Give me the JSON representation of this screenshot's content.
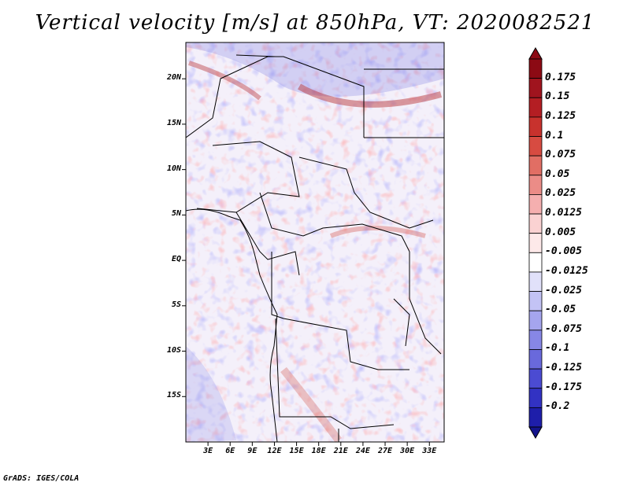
{
  "title": "Vertical velocity [m/s] at 850hPa, VT: 2020082521",
  "credit": "GrADS: IGES/COLA",
  "map": {
    "lon_range": [
      0,
      35
    ],
    "lat_range": [
      -20,
      24
    ],
    "lat_ticks": [
      {
        "value": 20,
        "label": "20N"
      },
      {
        "value": 15,
        "label": "15N"
      },
      {
        "value": 10,
        "label": "10N"
      },
      {
        "value": 5,
        "label": "5N"
      },
      {
        "value": 0,
        "label": "EQ"
      },
      {
        "value": -5,
        "label": "5S"
      },
      {
        "value": -10,
        "label": "10S"
      },
      {
        "value": -15,
        "label": "15S"
      }
    ],
    "lon_ticks": [
      {
        "value": 3,
        "label": "3E"
      },
      {
        "value": 6,
        "label": "6E"
      },
      {
        "value": 9,
        "label": "9E"
      },
      {
        "value": 12,
        "label": "12E"
      },
      {
        "value": 15,
        "label": "15E"
      },
      {
        "value": 18,
        "label": "18E"
      },
      {
        "value": 21,
        "label": "21E"
      },
      {
        "value": 24,
        "label": "24E"
      },
      {
        "value": 27,
        "label": "27E"
      },
      {
        "value": 30,
        "label": "30E"
      },
      {
        "value": 33,
        "label": "33E"
      }
    ]
  },
  "colorbar": {
    "levels": [
      {
        "label": "0.175",
        "color": "#a0141e"
      },
      {
        "label": "0.15",
        "color": "#b41e23"
      },
      {
        "label": "0.125",
        "color": "#c8322d"
      },
      {
        "label": "0.1",
        "color": "#d74b41"
      },
      {
        "label": "0.075",
        "color": "#e16e64"
      },
      {
        "label": "0.05",
        "color": "#eb8c87"
      },
      {
        "label": "0.025",
        "color": "#f5afaf"
      },
      {
        "label": "0.0125",
        "color": "#fad2d2"
      },
      {
        "label": "0.005",
        "color": "#fde9e9"
      },
      {
        "label": "-0.005",
        "color": "#ffffff"
      },
      {
        "label": "-0.0125",
        "color": "#e1e1fa"
      },
      {
        "label": "-0.025",
        "color": "#c3c3f5"
      },
      {
        "label": "-0.05",
        "color": "#a5a5ee"
      },
      {
        "label": "-0.075",
        "color": "#8787e6"
      },
      {
        "label": "-0.1",
        "color": "#6969dc"
      },
      {
        "label": "-0.125",
        "color": "#4b4bd2"
      },
      {
        "label": "-0.175",
        "color": "#3232c3"
      },
      {
        "label": "-0.2",
        "color": "#1e1eaa"
      }
    ],
    "top_color": "#8c0a14",
    "bottom_color": "#14148c",
    "mid_color": "#ffffff"
  }
}
